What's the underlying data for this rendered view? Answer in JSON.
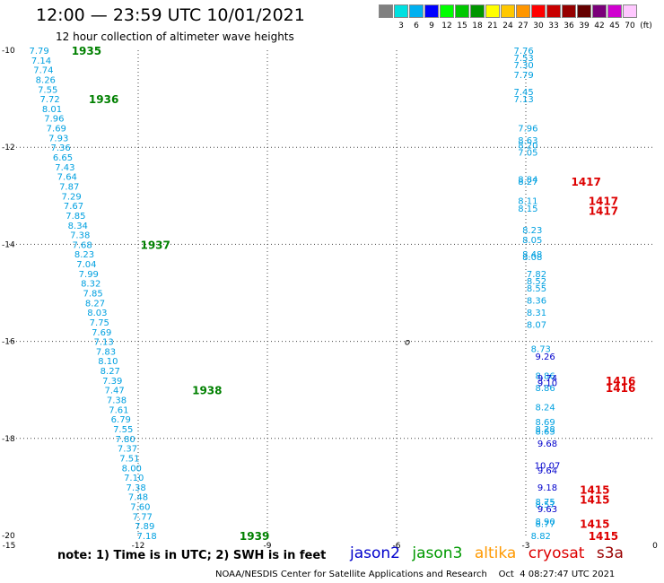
{
  "header": {
    "title": "12:00 — 23:59 UTC 10/01/2021",
    "subtitle": "12 hour collection of altimeter wave heights"
  },
  "scale": {
    "unit_label": "(ft)",
    "bins": [
      {
        "label": "",
        "color": "#808080"
      },
      {
        "label": "3",
        "color": "#00e0e0"
      },
      {
        "label": "6",
        "color": "#00b0f0"
      },
      {
        "label": "9",
        "color": "#0000ff"
      },
      {
        "label": "12",
        "color": "#00ff00"
      },
      {
        "label": "15",
        "color": "#00c800"
      },
      {
        "label": "18",
        "color": "#009600"
      },
      {
        "label": "21",
        "color": "#ffff00"
      },
      {
        "label": "24",
        "color": "#ffc800"
      },
      {
        "label": "27",
        "color": "#ff9600"
      },
      {
        "label": "30",
        "color": "#ff0000"
      },
      {
        "label": "33",
        "color": "#c80000"
      },
      {
        "label": "36",
        "color": "#960000"
      },
      {
        "label": "39",
        "color": "#640000"
      },
      {
        "label": "42",
        "color": "#7a007a"
      },
      {
        "label": "45",
        "color": "#d000d0"
      },
      {
        "label": "70",
        "color": "#ffc8ff"
      }
    ]
  },
  "legend": [
    {
      "name": "jason2",
      "color": "#0000cc"
    },
    {
      "name": "jason3",
      "color": "#009900"
    },
    {
      "name": "altika",
      "color": "#ff9900"
    },
    {
      "name": "cryosat",
      "color": "#dd0000"
    },
    {
      "name": "s3a",
      "color": "#990000"
    }
  ],
  "note": "note:  1) Time is in UTC; 2) SWH is in feet",
  "footer": "NOAA/NESDIS Center for Satellite Applications and Research    Oct  4 08:27:47 UTC 2021",
  "colors": {
    "cyan": "#00a0e0",
    "blue": "#0000cc",
    "green": "#008000",
    "red": "#dd0000"
  },
  "chart_data": {
    "type": "scatter",
    "x_ticks": [
      "-15",
      "-12",
      "-9",
      "-6",
      "-3",
      "0"
    ],
    "y_ticks": [
      "-10",
      "-12",
      "-14",
      "-16",
      "-18",
      "-20"
    ],
    "xlim": [
      -15,
      0
    ],
    "ylim": [
      -20,
      -10
    ],
    "grid": true,
    "marker": {
      "x": -5.75,
      "y": -16,
      "text": "o"
    },
    "tracks": [
      {
        "color": "#00a0e0",
        "points": [
          {
            "x": -14.3,
            "y": -10.0,
            "v": "7.79"
          },
          {
            "x": -14.25,
            "y": -10.2,
            "v": "7.14"
          },
          {
            "x": -14.2,
            "y": -10.4,
            "v": "7.74"
          },
          {
            "x": -14.15,
            "y": -10.6,
            "v": "8.26"
          },
          {
            "x": -14.1,
            "y": -10.8,
            "v": "7.55"
          },
          {
            "x": -14.05,
            "y": -11.0,
            "v": "7.72"
          },
          {
            "x": -14.0,
            "y": -11.2,
            "v": "8.01"
          },
          {
            "x": -13.95,
            "y": -11.4,
            "v": "7.96"
          },
          {
            "x": -13.9,
            "y": -11.6,
            "v": "7.69"
          },
          {
            "x": -13.85,
            "y": -11.8,
            "v": "7.93"
          },
          {
            "x": -13.8,
            "y": -12.0,
            "v": "7.36"
          },
          {
            "x": -13.75,
            "y": -12.2,
            "v": "6.65"
          },
          {
            "x": -13.7,
            "y": -12.4,
            "v": "7.43"
          },
          {
            "x": -13.65,
            "y": -12.6,
            "v": "7.64"
          },
          {
            "x": -13.6,
            "y": -12.8,
            "v": "7.87"
          },
          {
            "x": -13.55,
            "y": -13.0,
            "v": "7.29"
          },
          {
            "x": -13.5,
            "y": -13.2,
            "v": "7.67"
          },
          {
            "x": -13.45,
            "y": -13.4,
            "v": "7.85"
          },
          {
            "x": -13.4,
            "y": -13.6,
            "v": "8.34"
          },
          {
            "x": -13.35,
            "y": -13.8,
            "v": "7.38"
          },
          {
            "x": -13.3,
            "y": -14.0,
            "v": "7.68"
          },
          {
            "x": -13.25,
            "y": -14.2,
            "v": "8.23"
          },
          {
            "x": -13.2,
            "y": -14.4,
            "v": "7.04"
          },
          {
            "x": -13.15,
            "y": -14.6,
            "v": "7.99"
          },
          {
            "x": -13.1,
            "y": -14.8,
            "v": "8.32"
          },
          {
            "x": -13.05,
            "y": -15.0,
            "v": "7.85"
          },
          {
            "x": -13.0,
            "y": -15.2,
            "v": "8.27"
          },
          {
            "x": -12.95,
            "y": -15.4,
            "v": "8.03"
          },
          {
            "x": -12.9,
            "y": -15.6,
            "v": "7.75"
          },
          {
            "x": -12.85,
            "y": -15.8,
            "v": "7.69"
          },
          {
            "x": -12.8,
            "y": -16.0,
            "v": "7.13"
          },
          {
            "x": -12.75,
            "y": -16.2,
            "v": "7.83"
          },
          {
            "x": -12.7,
            "y": -16.4,
            "v": "8.10"
          },
          {
            "x": -12.65,
            "y": -16.6,
            "v": "8.27"
          },
          {
            "x": -12.6,
            "y": -16.8,
            "v": "7.39"
          },
          {
            "x": -12.55,
            "y": -17.0,
            "v": "7.47"
          },
          {
            "x": -12.5,
            "y": -17.2,
            "v": "7.38"
          },
          {
            "x": -12.45,
            "y": -17.4,
            "v": "7.61"
          },
          {
            "x": -12.4,
            "y": -17.6,
            "v": "6.79"
          },
          {
            "x": -12.35,
            "y": -17.8,
            "v": "7.55"
          },
          {
            "x": -12.3,
            "y": -18.0,
            "v": "7.80"
          },
          {
            "x": -12.25,
            "y": -18.2,
            "v": "7.37"
          },
          {
            "x": -12.2,
            "y": -18.4,
            "v": "7.51"
          },
          {
            "x": -12.15,
            "y": -18.6,
            "v": "8.00"
          },
          {
            "x": -12.1,
            "y": -18.8,
            "v": "7.10"
          },
          {
            "x": -12.05,
            "y": -19.0,
            "v": "7.38"
          },
          {
            "x": -12.0,
            "y": -19.2,
            "v": "7.48"
          },
          {
            "x": -11.95,
            "y": -19.4,
            "v": "7.60"
          },
          {
            "x": -11.9,
            "y": -19.6,
            "v": "7.77"
          },
          {
            "x": -11.85,
            "y": -19.8,
            "v": "7.89"
          },
          {
            "x": -11.8,
            "y": -20.0,
            "v": "7.18"
          }
        ]
      },
      {
        "color": "#00a0e0",
        "points": [
          {
            "x": -3.05,
            "y": -10.0,
            "v": "7.76"
          },
          {
            "x": -3.05,
            "y": -10.15,
            "v": "7.53"
          },
          {
            "x": -3.05,
            "y": -10.3,
            "v": "7.30"
          },
          {
            "x": -3.05,
            "y": -10.5,
            "v": "7.79"
          },
          {
            "x": -3.05,
            "y": -10.85,
            "v": "7.45"
          },
          {
            "x": -3.05,
            "y": -11.0,
            "v": "7.13"
          },
          {
            "x": -2.95,
            "y": -11.6,
            "v": "7.96"
          },
          {
            "x": -2.95,
            "y": -11.85,
            "v": "8.63"
          },
          {
            "x": -2.95,
            "y": -11.95,
            "v": "8.20"
          },
          {
            "x": -2.95,
            "y": -12.1,
            "v": "7.05"
          },
          {
            "x": -2.95,
            "y": -12.65,
            "v": "8.84"
          },
          {
            "x": -2.95,
            "y": -12.7,
            "v": "8.27"
          },
          {
            "x": -2.95,
            "y": -13.1,
            "v": "8.11"
          },
          {
            "x": -2.95,
            "y": -13.25,
            "v": "8.15"
          },
          {
            "x": -2.85,
            "y": -13.7,
            "v": "8.23"
          },
          {
            "x": -2.85,
            "y": -13.9,
            "v": "8.05"
          },
          {
            "x": -2.85,
            "y": -14.2,
            "v": "8.48"
          },
          {
            "x": -2.85,
            "y": -14.25,
            "v": "8.08"
          },
          {
            "x": -2.75,
            "y": -14.6,
            "v": "7.82"
          },
          {
            "x": -2.75,
            "y": -14.75,
            "v": "8.52"
          },
          {
            "x": -2.75,
            "y": -14.9,
            "v": "8.55"
          },
          {
            "x": -2.75,
            "y": -15.15,
            "v": "8.36"
          },
          {
            "x": -2.75,
            "y": -15.4,
            "v": "8.31"
          },
          {
            "x": -2.75,
            "y": -15.65,
            "v": "8.07"
          },
          {
            "x": -2.65,
            "y": -16.15,
            "v": "8.73"
          },
          {
            "x": -2.55,
            "y": -16.7,
            "v": "8.86"
          },
          {
            "x": -2.55,
            "y": -16.95,
            "v": "8.86"
          },
          {
            "x": -2.55,
            "y": -17.35,
            "v": "8.24"
          },
          {
            "x": -2.55,
            "y": -17.65,
            "v": "8.69"
          },
          {
            "x": -2.55,
            "y": -17.8,
            "v": "8.28"
          },
          {
            "x": -2.55,
            "y": -17.85,
            "v": "8.63"
          },
          {
            "x": -2.55,
            "y": -19.3,
            "v": "8.75"
          },
          {
            "x": -2.55,
            "y": -19.35,
            "v": "8.57"
          },
          {
            "x": -2.55,
            "y": -19.7,
            "v": "8.90"
          },
          {
            "x": -2.55,
            "y": -19.75,
            "v": "8.77"
          },
          {
            "x": -2.65,
            "y": -20.0,
            "v": "8.82"
          }
        ]
      },
      {
        "color": "#0000cc",
        "points": [
          {
            "x": -2.55,
            "y": -16.3,
            "v": "9.26"
          },
          {
            "x": -2.5,
            "y": -16.75,
            "v": "9.74"
          },
          {
            "x": -2.5,
            "y": -16.85,
            "v": "9.10"
          },
          {
            "x": -2.5,
            "y": -18.1,
            "v": "9.68"
          },
          {
            "x": -2.5,
            "y": -18.55,
            "v": "10.07"
          },
          {
            "x": -2.5,
            "y": -18.65,
            "v": "9.64"
          },
          {
            "x": -2.5,
            "y": -19.0,
            "v": "9.18"
          },
          {
            "x": -2.5,
            "y": -19.45,
            "v": "9.63"
          }
        ]
      }
    ],
    "time_labels": [
      {
        "x": -13.2,
        "y": -10.0,
        "text": "1935",
        "color": "#008000"
      },
      {
        "x": -12.8,
        "y": -11.0,
        "text": "1936",
        "color": "#008000"
      },
      {
        "x": -11.6,
        "y": -14.0,
        "text": "1937",
        "color": "#008000"
      },
      {
        "x": -10.4,
        "y": -17.0,
        "text": "1938",
        "color": "#008000"
      },
      {
        "x": -9.3,
        "y": -20.0,
        "text": "1939",
        "color": "#008000"
      },
      {
        "x": -1.6,
        "y": -12.7,
        "text": "1417",
        "color": "#dd0000"
      },
      {
        "x": -1.2,
        "y": -13.1,
        "text": "1417",
        "color": "#dd0000"
      },
      {
        "x": -1.2,
        "y": -13.3,
        "text": "1417",
        "color": "#dd0000"
      },
      {
        "x": -0.8,
        "y": -16.8,
        "text": "1416",
        "color": "#dd0000"
      },
      {
        "x": -0.8,
        "y": -16.95,
        "text": "1416",
        "color": "#dd0000"
      },
      {
        "x": -1.4,
        "y": -19.05,
        "text": "1415",
        "color": "#dd0000"
      },
      {
        "x": -1.4,
        "y": -19.25,
        "text": "1415",
        "color": "#dd0000"
      },
      {
        "x": -1.4,
        "y": -19.75,
        "text": "1415",
        "color": "#dd0000"
      },
      {
        "x": -1.2,
        "y": -20.0,
        "text": "1415",
        "color": "#dd0000"
      }
    ]
  }
}
